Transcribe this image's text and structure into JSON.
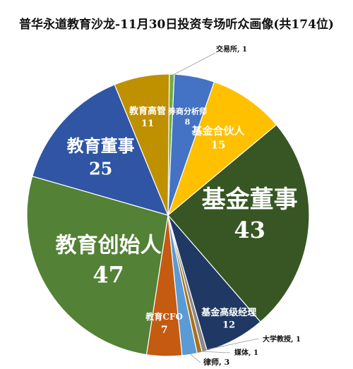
{
  "chart_data": {
    "type": "pie",
    "title": "普华永道教育沙龙-11月30日投资专场听众画像(共174位)",
    "slices": [
      {
        "label": "交易所",
        "value": 1,
        "color": "#70ad47"
      },
      {
        "label": "券商分析师",
        "value": 8,
        "color": "#4472c4"
      },
      {
        "label": "基金合伙人",
        "value": 15,
        "color": "#ffc000"
      },
      {
        "label": "基金董事",
        "value": 43,
        "color": "#375623"
      },
      {
        "label": "基金高级经理",
        "value": 12,
        "color": "#203864"
      },
      {
        "label": "大学教授",
        "value": 1,
        "color": "#8a8a8a"
      },
      {
        "label": "媒体",
        "value": 1,
        "color": "#a9711b"
      },
      {
        "label": "律师",
        "value": 3,
        "color": "#5b9bd5"
      },
      {
        "label": "教育CFO",
        "value": 7,
        "color": "#c55a11"
      },
      {
        "label": "教育创始人",
        "value": 47,
        "color": "#538135"
      },
      {
        "label": "教育董事",
        "value": 25,
        "color": "#2f55a4"
      },
      {
        "label": "教育高管",
        "value": 11,
        "color": "#bf9000"
      }
    ],
    "legend": "none"
  }
}
